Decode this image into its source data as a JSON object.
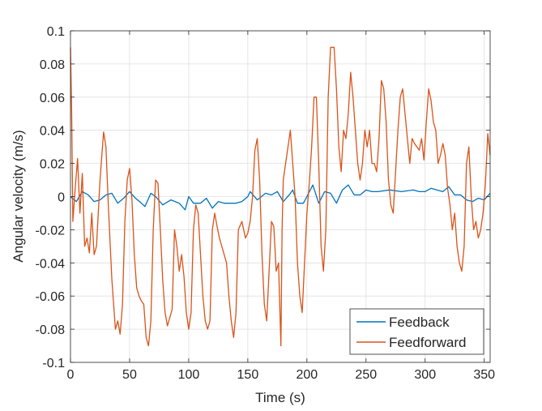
{
  "chart_data": {
    "type": "line",
    "xlabel": "Time (s)",
    "ylabel": "Angular velocity (m/s)",
    "xlim": [
      0,
      355
    ],
    "ylim": [
      -0.1,
      0.1
    ],
    "xticks": [
      "0",
      "50",
      "100",
      "150",
      "200",
      "250",
      "300",
      "350"
    ],
    "yticks": [
      "0.1",
      "0.08",
      "0.06",
      "0.04",
      "0.02",
      "0",
      "-0.02",
      "-0.04",
      "-0.06",
      "-0.08",
      "-0.1"
    ],
    "grid": true,
    "legend_position": "bottom-right",
    "series": [
      {
        "name": "Feedback",
        "color": "#0072BD",
        "points": [
          [
            0,
            0
          ],
          [
            5,
            -0.003
          ],
          [
            10,
            0.003
          ],
          [
            15,
            0.001
          ],
          [
            20,
            -0.003
          ],
          [
            25,
            -0.002
          ],
          [
            30,
            0.001
          ],
          [
            35,
            0.002
          ],
          [
            40,
            -0.004
          ],
          [
            45,
            -0.001
          ],
          [
            50,
            0.003
          ],
          [
            55,
            -0.001
          ],
          [
            60,
            -0.004
          ],
          [
            63,
            -0.006
          ],
          [
            68,
            0.002
          ],
          [
            72,
            0
          ],
          [
            78,
            -0.005
          ],
          [
            85,
            -0.002
          ],
          [
            92,
            -0.004
          ],
          [
            97,
            -0.008
          ],
          [
            100,
            0
          ],
          [
            104,
            -0.004
          ],
          [
            110,
            -0.004
          ],
          [
            115,
            -0.001
          ],
          [
            120,
            -0.007
          ],
          [
            125,
            -0.003
          ],
          [
            130,
            -0.004
          ],
          [
            135,
            -0.004
          ],
          [
            140,
            -0.004
          ],
          [
            145,
            -0.003
          ],
          [
            150,
            0
          ],
          [
            152,
            0.003
          ],
          [
            158,
            -0.002
          ],
          [
            165,
            0.002
          ],
          [
            170,
            0.001
          ],
          [
            175,
            0.003
          ],
          [
            180,
            -0.003
          ],
          [
            185,
            0.001
          ],
          [
            188,
            0.004
          ],
          [
            192,
            -0.004
          ],
          [
            197,
            -0.004
          ],
          [
            200,
            0
          ],
          [
            205,
            0.007
          ],
          [
            210,
            -0.004
          ],
          [
            215,
            0.003
          ],
          [
            220,
            0.002
          ],
          [
            225,
            -0.004
          ],
          [
            230,
            0.004
          ],
          [
            235,
            0.007
          ],
          [
            240,
            0.001
          ],
          [
            245,
            0.001
          ],
          [
            250,
            0.004
          ],
          [
            255,
            0.003
          ],
          [
            260,
            0.003
          ],
          [
            270,
            0.004
          ],
          [
            280,
            0.003
          ],
          [
            290,
            0.004
          ],
          [
            295,
            0.003
          ],
          [
            300,
            0.003
          ],
          [
            305,
            0.005
          ],
          [
            310,
            0.004
          ],
          [
            315,
            0.003
          ],
          [
            320,
            0.006
          ],
          [
            325,
            0.001
          ],
          [
            330,
            0.001
          ],
          [
            335,
            -0.002
          ],
          [
            340,
            -0.003
          ],
          [
            345,
            -0.001
          ],
          [
            350,
            -0.002
          ],
          [
            355,
            0.002
          ]
        ]
      },
      {
        "name": "Feedforward",
        "color": "#D95319",
        "points": [
          [
            0,
            0.09
          ],
          [
            1,
            0.05
          ],
          [
            2,
            -0.015
          ],
          [
            4,
            0.005
          ],
          [
            6,
            0.023
          ],
          [
            8,
            -0.01
          ],
          [
            10,
            0.014
          ],
          [
            12,
            -0.03
          ],
          [
            14,
            -0.025
          ],
          [
            16,
            -0.034
          ],
          [
            18,
            -0.01
          ],
          [
            20,
            -0.035
          ],
          [
            22,
            -0.03
          ],
          [
            25,
            0.01
          ],
          [
            28,
            0.039
          ],
          [
            30,
            0.03
          ],
          [
            32,
            -0.005
          ],
          [
            35,
            -0.05
          ],
          [
            38,
            -0.08
          ],
          [
            40,
            -0.075
          ],
          [
            42,
            -0.083
          ],
          [
            44,
            -0.065
          ],
          [
            46,
            -0.015
          ],
          [
            48,
            0.01
          ],
          [
            50,
            0.017
          ],
          [
            52,
            -0.002
          ],
          [
            54,
            -0.035
          ],
          [
            56,
            -0.055
          ],
          [
            58,
            -0.06
          ],
          [
            60,
            -0.063
          ],
          [
            62,
            -0.065
          ],
          [
            64,
            -0.085
          ],
          [
            66,
            -0.09
          ],
          [
            68,
            -0.075
          ],
          [
            70,
            -0.02
          ],
          [
            72,
            0.01
          ],
          [
            74,
            0.008
          ],
          [
            76,
            -0.02
          ],
          [
            78,
            -0.05
          ],
          [
            80,
            -0.07
          ],
          [
            82,
            -0.078
          ],
          [
            84,
            -0.073
          ],
          [
            86,
            -0.068
          ],
          [
            88,
            -0.02
          ],
          [
            90,
            -0.03
          ],
          [
            92,
            -0.045
          ],
          [
            94,
            -0.035
          ],
          [
            96,
            -0.048
          ],
          [
            98,
            -0.07
          ],
          [
            100,
            -0.08
          ],
          [
            102,
            -0.07
          ],
          [
            104,
            -0.02
          ],
          [
            106,
            -0.005
          ],
          [
            108,
            -0.01
          ],
          [
            110,
            -0.035
          ],
          [
            112,
            -0.06
          ],
          [
            114,
            -0.075
          ],
          [
            116,
            -0.08
          ],
          [
            118,
            -0.075
          ],
          [
            120,
            -0.02
          ],
          [
            122,
            -0.01
          ],
          [
            124,
            -0.018
          ],
          [
            126,
            -0.025
          ],
          [
            128,
            -0.03
          ],
          [
            130,
            -0.035
          ],
          [
            132,
            -0.04
          ],
          [
            134,
            -0.06
          ],
          [
            136,
            -0.075
          ],
          [
            138,
            -0.085
          ],
          [
            140,
            -0.07
          ],
          [
            142,
            -0.02
          ],
          [
            145,
            -0.015
          ],
          [
            148,
            -0.025
          ],
          [
            150,
            -0.022
          ],
          [
            152,
            -0.015
          ],
          [
            154,
            0
          ],
          [
            156,
            0.028
          ],
          [
            158,
            0.035
          ],
          [
            160,
            0.01
          ],
          [
            162,
            -0.035
          ],
          [
            164,
            -0.065
          ],
          [
            166,
            -0.075
          ],
          [
            168,
            -0.045
          ],
          [
            170,
            -0.015
          ],
          [
            172,
            -0.018
          ],
          [
            174,
            -0.045
          ],
          [
            176,
            -0.04
          ],
          [
            178,
            -0.09
          ],
          [
            179,
            -0.02
          ],
          [
            180,
            0.01
          ],
          [
            183,
            0.025
          ],
          [
            186,
            0.04
          ],
          [
            188,
            0.02
          ],
          [
            190,
            0
          ],
          [
            192,
            -0.04
          ],
          [
            194,
            -0.06
          ],
          [
            196,
            -0.07
          ],
          [
            198,
            -0.04
          ],
          [
            200,
            -0.01
          ],
          [
            202,
            0.008
          ],
          [
            204,
            0.03
          ],
          [
            206,
            0.06
          ],
          [
            208,
            0.06
          ],
          [
            210,
            0.02
          ],
          [
            212,
            -0.03
          ],
          [
            214,
            -0.045
          ],
          [
            216,
            -0.02
          ],
          [
            218,
            0.06
          ],
          [
            220,
            0.09
          ],
          [
            223,
            0.09
          ],
          [
            225,
            0.065
          ],
          [
            227,
            0.03
          ],
          [
            229,
            0.015
          ],
          [
            231,
            0.04
          ],
          [
            233,
            0.035
          ],
          [
            235,
            0.05
          ],
          [
            237,
            0.075
          ],
          [
            239,
            0.06
          ],
          [
            241,
            0.04
          ],
          [
            243,
            0.02
          ],
          [
            245,
            0.01
          ],
          [
            247,
            0.02
          ],
          [
            249,
            0.04
          ],
          [
            251,
            0.03
          ],
          [
            253,
            0.04
          ],
          [
            255,
            0.02
          ],
          [
            257,
            0.02
          ],
          [
            259,
            0.015
          ],
          [
            261,
            0.035
          ],
          [
            263,
            0.07
          ],
          [
            265,
            0.065
          ],
          [
            267,
            0.045
          ],
          [
            269,
            0.01
          ],
          [
            271,
            -0.005
          ],
          [
            273,
            -0.01
          ],
          [
            275,
            0.015
          ],
          [
            277,
            0.04
          ],
          [
            279,
            0.06
          ],
          [
            281,
            0.065
          ],
          [
            283,
            0.05
          ],
          [
            285,
            0.035
          ],
          [
            287,
            0.02
          ],
          [
            289,
            0.035
          ],
          [
            291,
            0.032
          ],
          [
            293,
            0.03
          ],
          [
            295,
            0.028
          ],
          [
            297,
            0.035
          ],
          [
            299,
            0.022
          ],
          [
            301,
            0.045
          ],
          [
            303,
            0.065
          ],
          [
            305,
            0.058
          ],
          [
            307,
            0.045
          ],
          [
            309,
            0.04
          ],
          [
            311,
            0.02
          ],
          [
            313,
            0.025
          ],
          [
            315,
            0.032
          ],
          [
            317,
            0.025
          ],
          [
            319,
            0.005
          ],
          [
            321,
            -0.005
          ],
          [
            323,
            -0.02
          ],
          [
            325,
            -0.01
          ],
          [
            327,
            -0.03
          ],
          [
            329,
            -0.04
          ],
          [
            331,
            -0.045
          ],
          [
            333,
            -0.03
          ],
          [
            335,
            0.02
          ],
          [
            337,
            0.03
          ],
          [
            339,
            0
          ],
          [
            341,
            -0.02
          ],
          [
            343,
            -0.015
          ],
          [
            345,
            -0.025
          ],
          [
            347,
            -0.02
          ],
          [
            349,
            -0.01
          ],
          [
            351,
            0.008
          ],
          [
            353,
            0.038
          ],
          [
            355,
            0.025
          ]
        ]
      }
    ]
  }
}
